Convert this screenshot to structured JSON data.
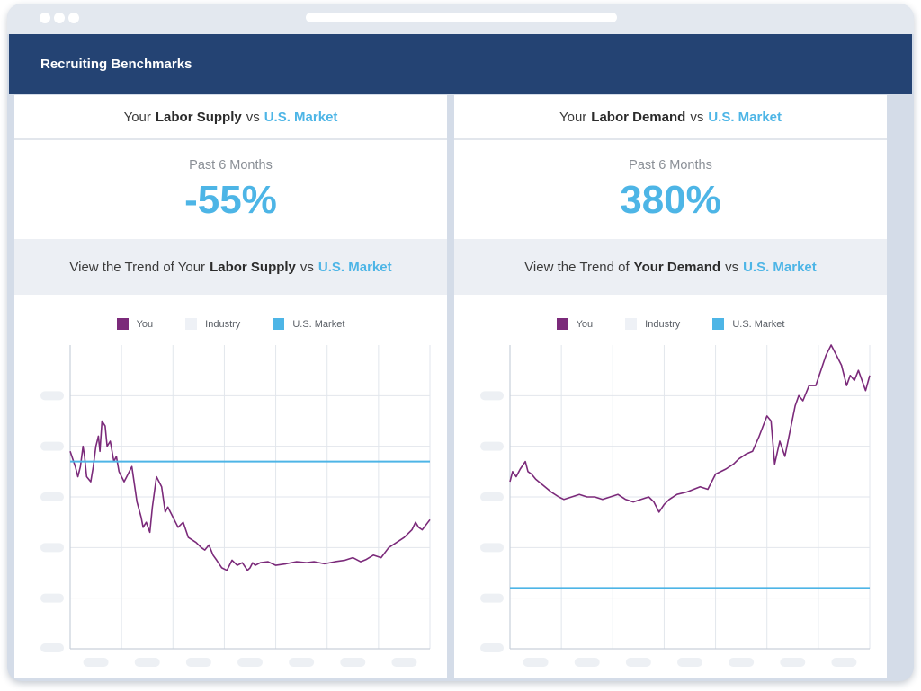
{
  "header": {
    "title": "Recruiting Benchmarks"
  },
  "colors": {
    "you": "#7b2a7a",
    "industry": "#eef1f6",
    "market": "#4db5e6",
    "header_bg": "#244373"
  },
  "panels": [
    {
      "title_prefix": "Your",
      "title_bold": "Labor Supply",
      "title_vs": "vs",
      "title_market": "U.S. Market",
      "stat_label": "Past 6 Months",
      "stat_value": "-55%",
      "trend_prefix": "View the Trend of Your",
      "trend_bold": "Labor Supply",
      "trend_vs": "vs",
      "trend_market": "U.S. Market",
      "legend": [
        "You",
        "Industry",
        "U.S. Market"
      ]
    },
    {
      "title_prefix": "Your",
      "title_bold": "Labor Demand",
      "title_vs": "vs",
      "title_market": "U.S. Market",
      "stat_label": "Past 6 Months",
      "stat_value": "380%",
      "trend_prefix": "View the Trend of",
      "trend_bold": "Your Demand",
      "trend_vs": "vs",
      "trend_market": "U.S. Market",
      "legend": [
        "You",
        "Industry",
        "U.S. Market"
      ]
    }
  ],
  "chart_data": [
    {
      "type": "line",
      "title": "",
      "xlabel": "",
      "ylabel": "",
      "ylim": [
        0,
        6
      ],
      "xlim": [
        0,
        7
      ],
      "grid": true,
      "legend": "top-center",
      "series": [
        {
          "name": "You",
          "x": [
            0,
            0.1,
            0.15,
            0.2,
            0.25,
            0.28,
            0.32,
            0.4,
            0.45,
            0.5,
            0.55,
            0.58,
            0.62,
            0.68,
            0.72,
            0.78,
            0.85,
            0.9,
            0.95,
            1.05,
            1.1,
            1.2,
            1.3,
            1.38,
            1.42,
            1.48,
            1.55,
            1.6,
            1.68,
            1.78,
            1.85,
            1.9,
            2.0,
            2.1,
            2.2,
            2.3,
            2.45,
            2.55,
            2.62,
            2.7,
            2.78,
            2.85,
            2.95,
            3.05,
            3.15,
            3.25,
            3.35,
            3.45,
            3.5,
            3.55,
            3.6,
            3.7,
            3.85,
            4.0,
            4.2,
            4.4,
            4.6,
            4.75,
            4.95,
            5.15,
            5.35,
            5.5,
            5.65,
            5.75,
            5.9,
            6.05,
            6.2,
            6.35,
            6.5,
            6.65,
            6.72,
            6.78,
            6.85,
            7.0
          ],
          "values": [
            3.9,
            3.6,
            3.4,
            3.6,
            4.0,
            3.8,
            3.4,
            3.3,
            3.6,
            4.0,
            4.2,
            3.9,
            4.5,
            4.4,
            4.0,
            4.1,
            3.7,
            3.8,
            3.5,
            3.3,
            3.4,
            3.6,
            2.9,
            2.6,
            2.4,
            2.5,
            2.3,
            2.8,
            3.4,
            3.2,
            2.7,
            2.8,
            2.6,
            2.4,
            2.5,
            2.2,
            2.1,
            2.0,
            1.95,
            2.05,
            1.85,
            1.75,
            1.6,
            1.55,
            1.75,
            1.65,
            1.7,
            1.55,
            1.6,
            1.7,
            1.65,
            1.7,
            1.72,
            1.65,
            1.68,
            1.72,
            1.7,
            1.72,
            1.68,
            1.72,
            1.75,
            1.8,
            1.72,
            1.76,
            1.85,
            1.8,
            2.0,
            2.1,
            2.2,
            2.35,
            2.5,
            2.4,
            2.35,
            2.55
          ]
        },
        {
          "name": "U.S. Market",
          "x": [
            0,
            7
          ],
          "values": [
            3.7,
            3.7
          ]
        }
      ]
    },
    {
      "type": "line",
      "title": "",
      "xlabel": "",
      "ylabel": "",
      "ylim": [
        0,
        6
      ],
      "xlim": [
        0,
        7
      ],
      "grid": true,
      "legend": "top-center",
      "series": [
        {
          "name": "You",
          "x": [
            0,
            0.05,
            0.12,
            0.2,
            0.3,
            0.35,
            0.42,
            0.5,
            0.62,
            0.8,
            0.95,
            1.05,
            1.2,
            1.35,
            1.5,
            1.65,
            1.8,
            1.95,
            2.1,
            2.25,
            2.4,
            2.55,
            2.7,
            2.8,
            2.9,
            3.0,
            3.1,
            3.25,
            3.45,
            3.7,
            3.85,
            4.0,
            4.2,
            4.35,
            4.45,
            4.6,
            4.72,
            4.85,
            5.0,
            5.08,
            5.15,
            5.25,
            5.35,
            5.45,
            5.55,
            5.62,
            5.7,
            5.82,
            5.95,
            6.05,
            6.15,
            6.25,
            6.35,
            6.45,
            6.55,
            6.62,
            6.7,
            6.78,
            6.85,
            6.92,
            7.0
          ],
          "values": [
            3.3,
            3.5,
            3.4,
            3.55,
            3.7,
            3.5,
            3.45,
            3.35,
            3.25,
            3.1,
            3.0,
            2.95,
            3.0,
            3.05,
            3.0,
            3.0,
            2.95,
            3.0,
            3.05,
            2.95,
            2.9,
            2.95,
            3.0,
            2.9,
            2.7,
            2.85,
            2.95,
            3.05,
            3.1,
            3.2,
            3.15,
            3.45,
            3.55,
            3.65,
            3.75,
            3.85,
            3.9,
            4.2,
            4.6,
            4.5,
            3.65,
            4.1,
            3.8,
            4.3,
            4.8,
            5.0,
            4.9,
            5.2,
            5.2,
            5.5,
            5.8,
            6.0,
            5.8,
            5.6,
            5.2,
            5.4,
            5.3,
            5.5,
            5.3,
            5.1,
            5.4
          ]
        },
        {
          "name": "U.S. Market",
          "x": [
            0,
            7
          ],
          "values": [
            1.2,
            1.2
          ]
        }
      ]
    }
  ]
}
